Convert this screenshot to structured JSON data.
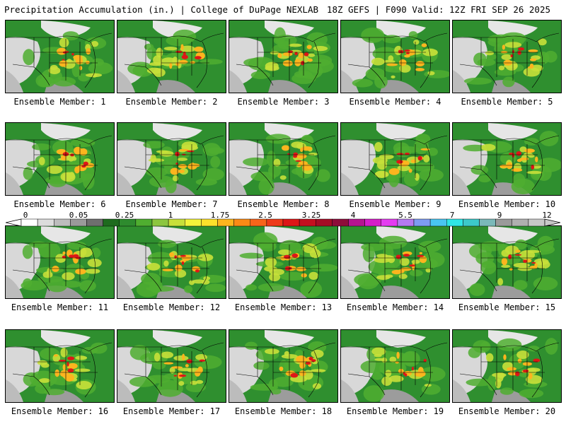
{
  "header": {
    "title": "Precipitation Accumulation (in.) | College of DuPage NEXLAB",
    "valid": "18Z GEFS | F090 Valid: 12Z FRI SEP 26 2025"
  },
  "members": [
    "Ensemble Member: 1",
    "Ensemble Member: 2",
    "Ensemble Member: 3",
    "Ensemble Member: 4",
    "Ensemble Member: 5",
    "Ensemble Member: 6",
    "Ensemble Member: 7",
    "Ensemble Member: 8",
    "Ensemble Member: 9",
    "Ensemble Member: 10",
    "Ensemble Member: 11",
    "Ensemble Member: 12",
    "Ensemble Member: 13",
    "Ensemble Member: 14",
    "Ensemble Member: 15",
    "Ensemble Member: 16",
    "Ensemble Member: 17",
    "Ensemble Member: 18",
    "Ensemble Member: 19",
    "Ensemble Member: 20"
  ],
  "colorbar": {
    "labels": [
      "0",
      "0.05",
      "0.25",
      "1",
      "1.75",
      "2.5",
      "3.25",
      "4",
      "5.5",
      "7",
      "9",
      "12"
    ],
    "colors": [
      "#ffffff",
      "#dcdcdc",
      "#bdbdbd",
      "#9a9a9a",
      "#6f6f6f",
      "#1e6b1e",
      "#2e8b2e",
      "#4fae30",
      "#8cc63f",
      "#c8e03a",
      "#f4f43a",
      "#fde12b",
      "#fcb51e",
      "#fb8a16",
      "#f7641a",
      "#ee3a19",
      "#dd1717",
      "#c4101f",
      "#a50d25",
      "#8e0d3a",
      "#b5158f",
      "#d61ec9",
      "#e43cf0",
      "#b57af0",
      "#7e9cf2",
      "#49c6f2",
      "#2fe6e6",
      "#3cc9c9",
      "#7ab9b9",
      "#9a9a9a",
      "#b0b0b0",
      "#c8c8c8"
    ]
  }
}
